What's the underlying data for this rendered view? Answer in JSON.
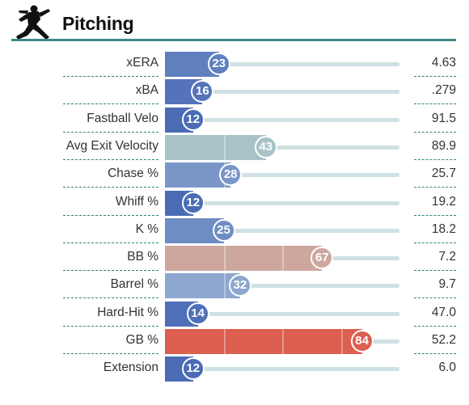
{
  "section": {
    "title": "Pitching",
    "icon": "pitcher-silhouette-icon"
  },
  "metrics": [
    {
      "label": "xERA",
      "percentile": 23,
      "value": "4.63",
      "color": "#5f7fbe"
    },
    {
      "label": "xBA",
      "percentile": 16,
      "value": ".279",
      "color": "#5473ba"
    },
    {
      "label": "Fastball Velo",
      "percentile": 12,
      "value": "91.5",
      "color": "#4b6cb5"
    },
    {
      "label": "Avg Exit Velocity",
      "percentile": 43,
      "value": "89.9",
      "color": "#a8c3c8"
    },
    {
      "label": "Chase %",
      "percentile": 28,
      "value": "25.7",
      "color": "#7a97c7"
    },
    {
      "label": "Whiff %",
      "percentile": 12,
      "value": "19.2",
      "color": "#4b6cb5"
    },
    {
      "label": "K %",
      "percentile": 25,
      "value": "18.2",
      "color": "#6e8dc3"
    },
    {
      "label": "BB %",
      "percentile": 67,
      "value": "7.2",
      "color": "#cda79e"
    },
    {
      "label": "Barrel %",
      "percentile": 32,
      "value": "9.7",
      "color": "#8ea7cf"
    },
    {
      "label": "Hard-Hit %",
      "percentile": 14,
      "value": "47.0",
      "color": "#4f6fb7"
    },
    {
      "label": "GB %",
      "percentile": 84,
      "value": "52.2",
      "color": "#dc5f4f"
    },
    {
      "label": "Extension",
      "percentile": 12,
      "value": "6.0",
      "color": "#4b6cb5"
    }
  ]
}
